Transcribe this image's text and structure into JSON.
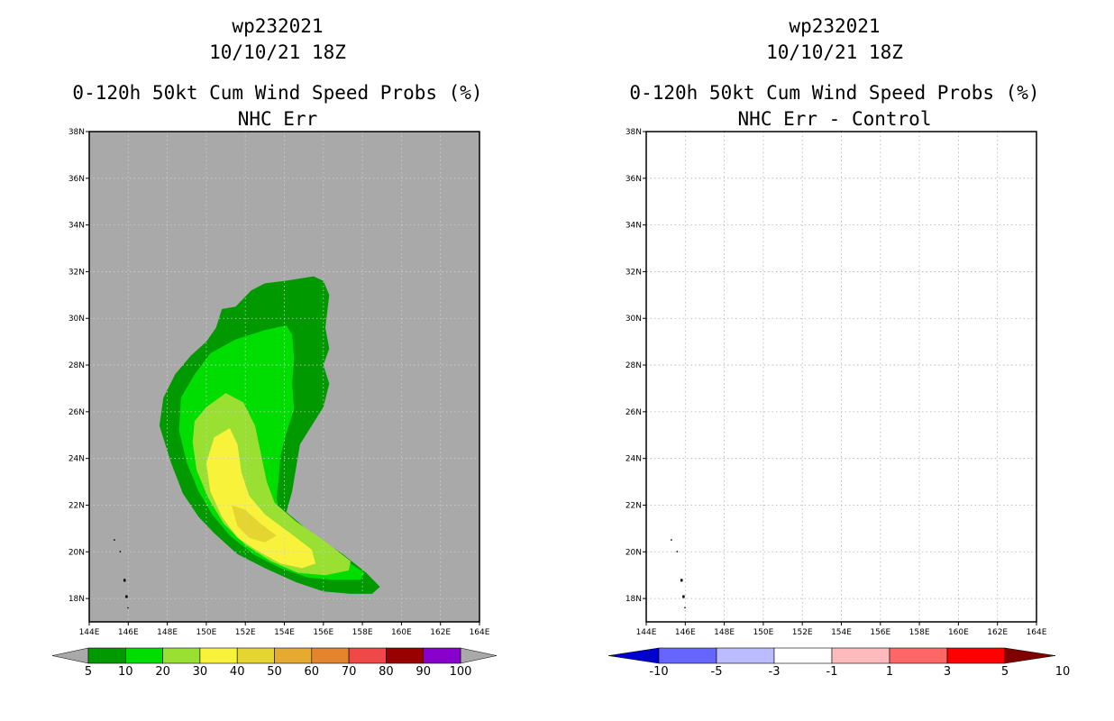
{
  "colors": {
    "land_gray": "#a9a9a9",
    "prob_levels": [
      "#009900",
      "#00dd00",
      "#99e033",
      "#f8f23a",
      "#e5d531",
      "#e5ab31",
      "#e5842e",
      "#f04848",
      "#990000",
      "#8800cc"
    ],
    "diff_levels": [
      "#0000cc",
      "#6666ff",
      "#bbbbff",
      "#ffffff",
      "#ffbbbb",
      "#ff6666",
      "#ff0000",
      "#800000"
    ],
    "arrow_gray": "#a9a9a9"
  },
  "chart_data": [
    {
      "type": "contour-map",
      "title": [
        "wp232021",
        "10/10/21 18Z",
        "0-120h 50kt Cum Wind Speed Probs (%)",
        "NHC Err"
      ],
      "lon_ticks": [
        "144E",
        "146E",
        "148E",
        "150E",
        "152E",
        "154E",
        "156E",
        "158E",
        "160E",
        "162E",
        "164E"
      ],
      "lat_ticks": [
        "38N",
        "36N",
        "34N",
        "32N",
        "30N",
        "28N",
        "26N",
        "24N",
        "22N",
        "20N",
        "18N"
      ],
      "lon_range": [
        144,
        164
      ],
      "lat_range": [
        17,
        38
      ],
      "grid": true,
      "colorbar_labels": [
        "5",
        "10",
        "20",
        "30",
        "40",
        "50",
        "60",
        "70",
        "80",
        "90",
        "100"
      ],
      "contours": [
        {
          "level": 5,
          "lonlat": [
            [
              152.3,
              31.2
            ],
            [
              153,
              31.5
            ],
            [
              154,
              31.6
            ],
            [
              155.5,
              31.8
            ],
            [
              156,
              31.6
            ],
            [
              156.3,
              31.0
            ],
            [
              156.1,
              29.6
            ],
            [
              156.3,
              28.7
            ],
            [
              156.0,
              28.0
            ],
            [
              156.3,
              27.2
            ],
            [
              156.0,
              26.2
            ],
            [
              155.4,
              25.4
            ],
            [
              154.8,
              24.6
            ],
            [
              154.6,
              23.6
            ],
            [
              154.4,
              22.6
            ],
            [
              154.1,
              21.7
            ],
            [
              155.4,
              20.8
            ],
            [
              157.0,
              19.9
            ],
            [
              158.2,
              19.1
            ],
            [
              158.9,
              18.5
            ],
            [
              158.5,
              18.2
            ],
            [
              157.4,
              18.2
            ],
            [
              156.0,
              18.3
            ],
            [
              154.6,
              18.7
            ],
            [
              153.0,
              19.3
            ],
            [
              151.6,
              19.9
            ],
            [
              150.4,
              20.8
            ],
            [
              149.6,
              21.5
            ],
            [
              148.8,
              22.5
            ],
            [
              148.2,
              23.8
            ],
            [
              147.6,
              25.4
            ],
            [
              147.8,
              26.6
            ],
            [
              148.4,
              27.6
            ],
            [
              149.2,
              28.4
            ],
            [
              150.0,
              29.0
            ],
            [
              150.5,
              29.6
            ],
            [
              150.8,
              30.4
            ],
            [
              151.5,
              30.5
            ]
          ]
        },
        {
          "level": 10,
          "lonlat": [
            [
              150.2,
              28.5
            ],
            [
              151.5,
              29.1
            ],
            [
              153.0,
              29.5
            ],
            [
              154.1,
              29.7
            ],
            [
              154.4,
              29.3
            ],
            [
              154.5,
              28.3
            ],
            [
              154.4,
              27.2
            ],
            [
              154.5,
              26.1
            ],
            [
              154.1,
              25.1
            ],
            [
              153.8,
              24.1
            ],
            [
              153.7,
              23.1
            ],
            [
              153.6,
              22.3
            ],
            [
              153.8,
              21.5
            ],
            [
              155.2,
              20.6
            ],
            [
              156.7,
              19.9
            ],
            [
              158.1,
              19.1
            ],
            [
              157.9,
              18.8
            ],
            [
              156.5,
              18.8
            ],
            [
              155.2,
              18.9
            ],
            [
              153.8,
              19.3
            ],
            [
              152.4,
              19.9
            ],
            [
              151.2,
              20.7
            ],
            [
              150.3,
              21.6
            ],
            [
              149.6,
              22.6
            ],
            [
              149.0,
              23.8
            ],
            [
              148.6,
              25.2
            ],
            [
              148.7,
              26.6
            ],
            [
              149.4,
              27.6
            ]
          ]
        },
        {
          "level": 20,
          "lonlat": [
            [
              150.0,
              26.2
            ],
            [
              151.0,
              26.8
            ],
            [
              151.9,
              26.4
            ],
            [
              152.5,
              25.4
            ],
            [
              152.8,
              24.2
            ],
            [
              153.1,
              23.0
            ],
            [
              153.5,
              22.1
            ],
            [
              154.6,
              21.3
            ],
            [
              156.0,
              20.5
            ],
            [
              157.4,
              19.6
            ],
            [
              157.3,
              19.2
            ],
            [
              156.1,
              19.0
            ],
            [
              154.7,
              19.1
            ],
            [
              153.3,
              19.6
            ],
            [
              152.0,
              20.3
            ],
            [
              150.9,
              21.2
            ],
            [
              150.1,
              22.3
            ],
            [
              149.5,
              23.5
            ],
            [
              149.3,
              24.7
            ],
            [
              149.4,
              25.6
            ]
          ]
        },
        {
          "level": 30,
          "lonlat": [
            [
              150.4,
              24.9
            ],
            [
              151.2,
              25.3
            ],
            [
              151.6,
              24.6
            ],
            [
              151.8,
              23.4
            ],
            [
              152.2,
              22.4
            ],
            [
              153.0,
              21.6
            ],
            [
              154.3,
              20.8
            ],
            [
              155.4,
              20.1
            ],
            [
              155.6,
              19.5
            ],
            [
              154.9,
              19.3
            ],
            [
              153.8,
              19.5
            ],
            [
              152.7,
              20.0
            ],
            [
              151.6,
              20.6
            ],
            [
              150.8,
              21.5
            ],
            [
              150.2,
              22.6
            ],
            [
              150.0,
              23.8
            ]
          ]
        },
        {
          "level": 40,
          "lonlat": [
            [
              151.3,
              22.0
            ],
            [
              152.0,
              21.8
            ],
            [
              152.8,
              21.2
            ],
            [
              153.6,
              20.7
            ],
            [
              153.0,
              20.4
            ],
            [
              152.2,
              20.6
            ],
            [
              151.6,
              21.1
            ]
          ]
        }
      ]
    },
    {
      "type": "contour-map",
      "title": [
        "wp232021",
        "10/10/21 18Z",
        "0-120h 50kt Cum Wind Speed Probs (%)",
        "NHC Err - Control"
      ],
      "lon_ticks": [
        "144E",
        "146E",
        "148E",
        "150E",
        "152E",
        "154E",
        "156E",
        "158E",
        "160E",
        "162E",
        "164E"
      ],
      "lat_ticks": [
        "38N",
        "36N",
        "34N",
        "32N",
        "30N",
        "28N",
        "26N",
        "24N",
        "22N",
        "20N",
        "18N"
      ],
      "lon_range": [
        144,
        164
      ],
      "lat_range": [
        17,
        38
      ],
      "grid": true,
      "colorbar_labels": [
        "-10",
        "-5",
        "-3",
        "-1",
        "1",
        "3",
        "5",
        "10"
      ],
      "contours": []
    }
  ]
}
